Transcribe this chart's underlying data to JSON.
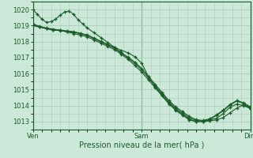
{
  "xlabel": "Pression niveau de la mer( hPa )",
  "xtick_labels": [
    "Ven",
    "Sam",
    "Dim"
  ],
  "xtick_positions": [
    0,
    48,
    96
  ],
  "ylim": [
    1012.5,
    1020.5
  ],
  "yticks": [
    1013,
    1014,
    1015,
    1016,
    1017,
    1018,
    1019,
    1020
  ],
  "bg_color": "#cce8d8",
  "grid_color": "#aaccbc",
  "line_color": "#1a5c28",
  "series": [
    {
      "x": [
        0,
        2,
        4,
        6,
        8,
        10,
        12,
        14,
        16,
        18,
        20,
        22,
        24,
        27,
        30,
        33,
        36,
        39,
        42,
        45,
        48,
        51,
        54,
        57,
        60,
        63,
        66,
        69,
        72,
        75,
        78,
        81,
        84,
        87,
        90,
        93,
        96
      ],
      "y": [
        1020.0,
        1019.7,
        1019.4,
        1019.2,
        1019.25,
        1019.4,
        1019.65,
        1019.85,
        1019.9,
        1019.7,
        1019.35,
        1019.1,
        1018.85,
        1018.55,
        1018.25,
        1017.95,
        1017.65,
        1017.45,
        1017.3,
        1017.05,
        1016.65,
        1015.8,
        1015.15,
        1014.65,
        1014.15,
        1013.75,
        1013.45,
        1013.15,
        1013.0,
        1013.0,
        1013.1,
        1013.2,
        1013.5,
        1013.9,
        1014.1,
        1014.0,
        1013.8
      ]
    },
    {
      "x": [
        0,
        3,
        6,
        9,
        12,
        15,
        18,
        21,
        24,
        27,
        30,
        33,
        36,
        39,
        42,
        45,
        48,
        51,
        54,
        57,
        60,
        63,
        66,
        69,
        72,
        75,
        78,
        81,
        84,
        87,
        90,
        93,
        96
      ],
      "y": [
        1019.0,
        1018.9,
        1018.8,
        1018.7,
        1018.7,
        1018.6,
        1018.5,
        1018.4,
        1018.3,
        1018.1,
        1017.9,
        1017.7,
        1017.5,
        1017.2,
        1016.9,
        1016.5,
        1016.1,
        1015.6,
        1015.1,
        1014.6,
        1014.1,
        1013.7,
        1013.4,
        1013.1,
        1013.0,
        1013.0,
        1013.05,
        1013.1,
        1013.25,
        1013.55,
        1013.85,
        1014.05,
        1013.85
      ]
    },
    {
      "x": [
        0,
        3,
        6,
        9,
        12,
        15,
        18,
        21,
        24,
        27,
        30,
        33,
        36,
        39,
        42,
        45,
        48,
        51,
        54,
        57,
        60,
        63,
        66,
        69,
        72,
        75,
        78,
        81,
        84,
        87,
        90,
        93,
        96
      ],
      "y": [
        1019.1,
        1018.95,
        1018.85,
        1018.78,
        1018.72,
        1018.67,
        1018.62,
        1018.52,
        1018.42,
        1018.22,
        1018.02,
        1017.82,
        1017.62,
        1017.32,
        1017.02,
        1016.72,
        1016.32,
        1015.82,
        1015.32,
        1014.82,
        1014.32,
        1013.92,
        1013.62,
        1013.32,
        1013.12,
        1013.07,
        1013.17,
        1013.42,
        1013.72,
        1014.07,
        1014.32,
        1014.17,
        1013.92
      ]
    },
    {
      "x": [
        0,
        3,
        6,
        9,
        12,
        15,
        18,
        21,
        24,
        27,
        30,
        33,
        36,
        39,
        42,
        45,
        48,
        51,
        54,
        57,
        60,
        63,
        66,
        69,
        72,
        75,
        78,
        81,
        84,
        87,
        90,
        93,
        96
      ],
      "y": [
        1019.05,
        1018.92,
        1018.82,
        1018.74,
        1018.68,
        1018.63,
        1018.58,
        1018.48,
        1018.38,
        1018.18,
        1017.98,
        1017.78,
        1017.58,
        1017.28,
        1016.98,
        1016.63,
        1016.23,
        1015.73,
        1015.23,
        1014.73,
        1014.23,
        1013.83,
        1013.53,
        1013.23,
        1013.08,
        1013.03,
        1013.13,
        1013.38,
        1013.68,
        1014.03,
        1014.28,
        1014.13,
        1013.88
      ]
    }
  ]
}
